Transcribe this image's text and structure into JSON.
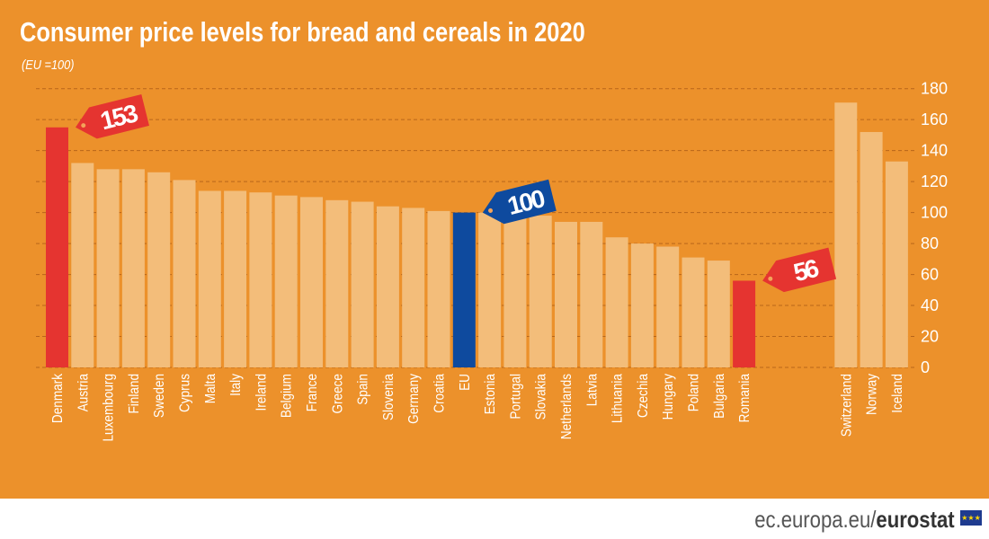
{
  "chart_data": {
    "type": "bar",
    "title": "Consumer price levels for bread and cereals in 2020",
    "subtitle": "(EU =100)",
    "categories": [
      "Denmark",
      "Austria",
      "Luxembourg",
      "Finland",
      "Sweden",
      "Cyprus",
      "Malta",
      "Italy",
      "Ireland",
      "Belgium",
      "France",
      "Greece",
      "Spain",
      "Slovenia",
      "Germany",
      "Croatia",
      "EU",
      "Estonia",
      "Portugal",
      "Slovakia",
      "Netherlands",
      "Latvia",
      "Lithuania",
      "Czechia",
      "Hungary",
      "Poland",
      "Bulgaria",
      "Romania",
      "Switzerland",
      "Norway",
      "Iceland"
    ],
    "values": [
      153,
      132,
      128,
      128,
      126,
      121,
      114,
      114,
      113,
      111,
      110,
      108,
      107,
      104,
      103,
      101,
      100,
      100,
      99,
      98,
      94,
      94,
      84,
      80,
      78,
      71,
      69,
      56,
      171,
      152,
      133
    ],
    "ylim": [
      0,
      180
    ],
    "yticks": [
      0,
      20,
      40,
      60,
      80,
      100,
      120,
      140,
      160,
      180
    ],
    "grid": true,
    "annotations": [
      {
        "category": "Denmark",
        "text": "153",
        "color": "#e53430"
      },
      {
        "category": "EU",
        "text": "100",
        "color": "#0e4a9e"
      },
      {
        "category": "Romania",
        "text": "56",
        "color": "#e53430"
      }
    ],
    "colors": {
      "default": "#f3bd7a",
      "highlight": "#e53430",
      "eu": "#0e4a9e",
      "background": "#ec912b"
    }
  },
  "footer": {
    "site": "ec.europa.eu/",
    "brand": "eurostat"
  }
}
